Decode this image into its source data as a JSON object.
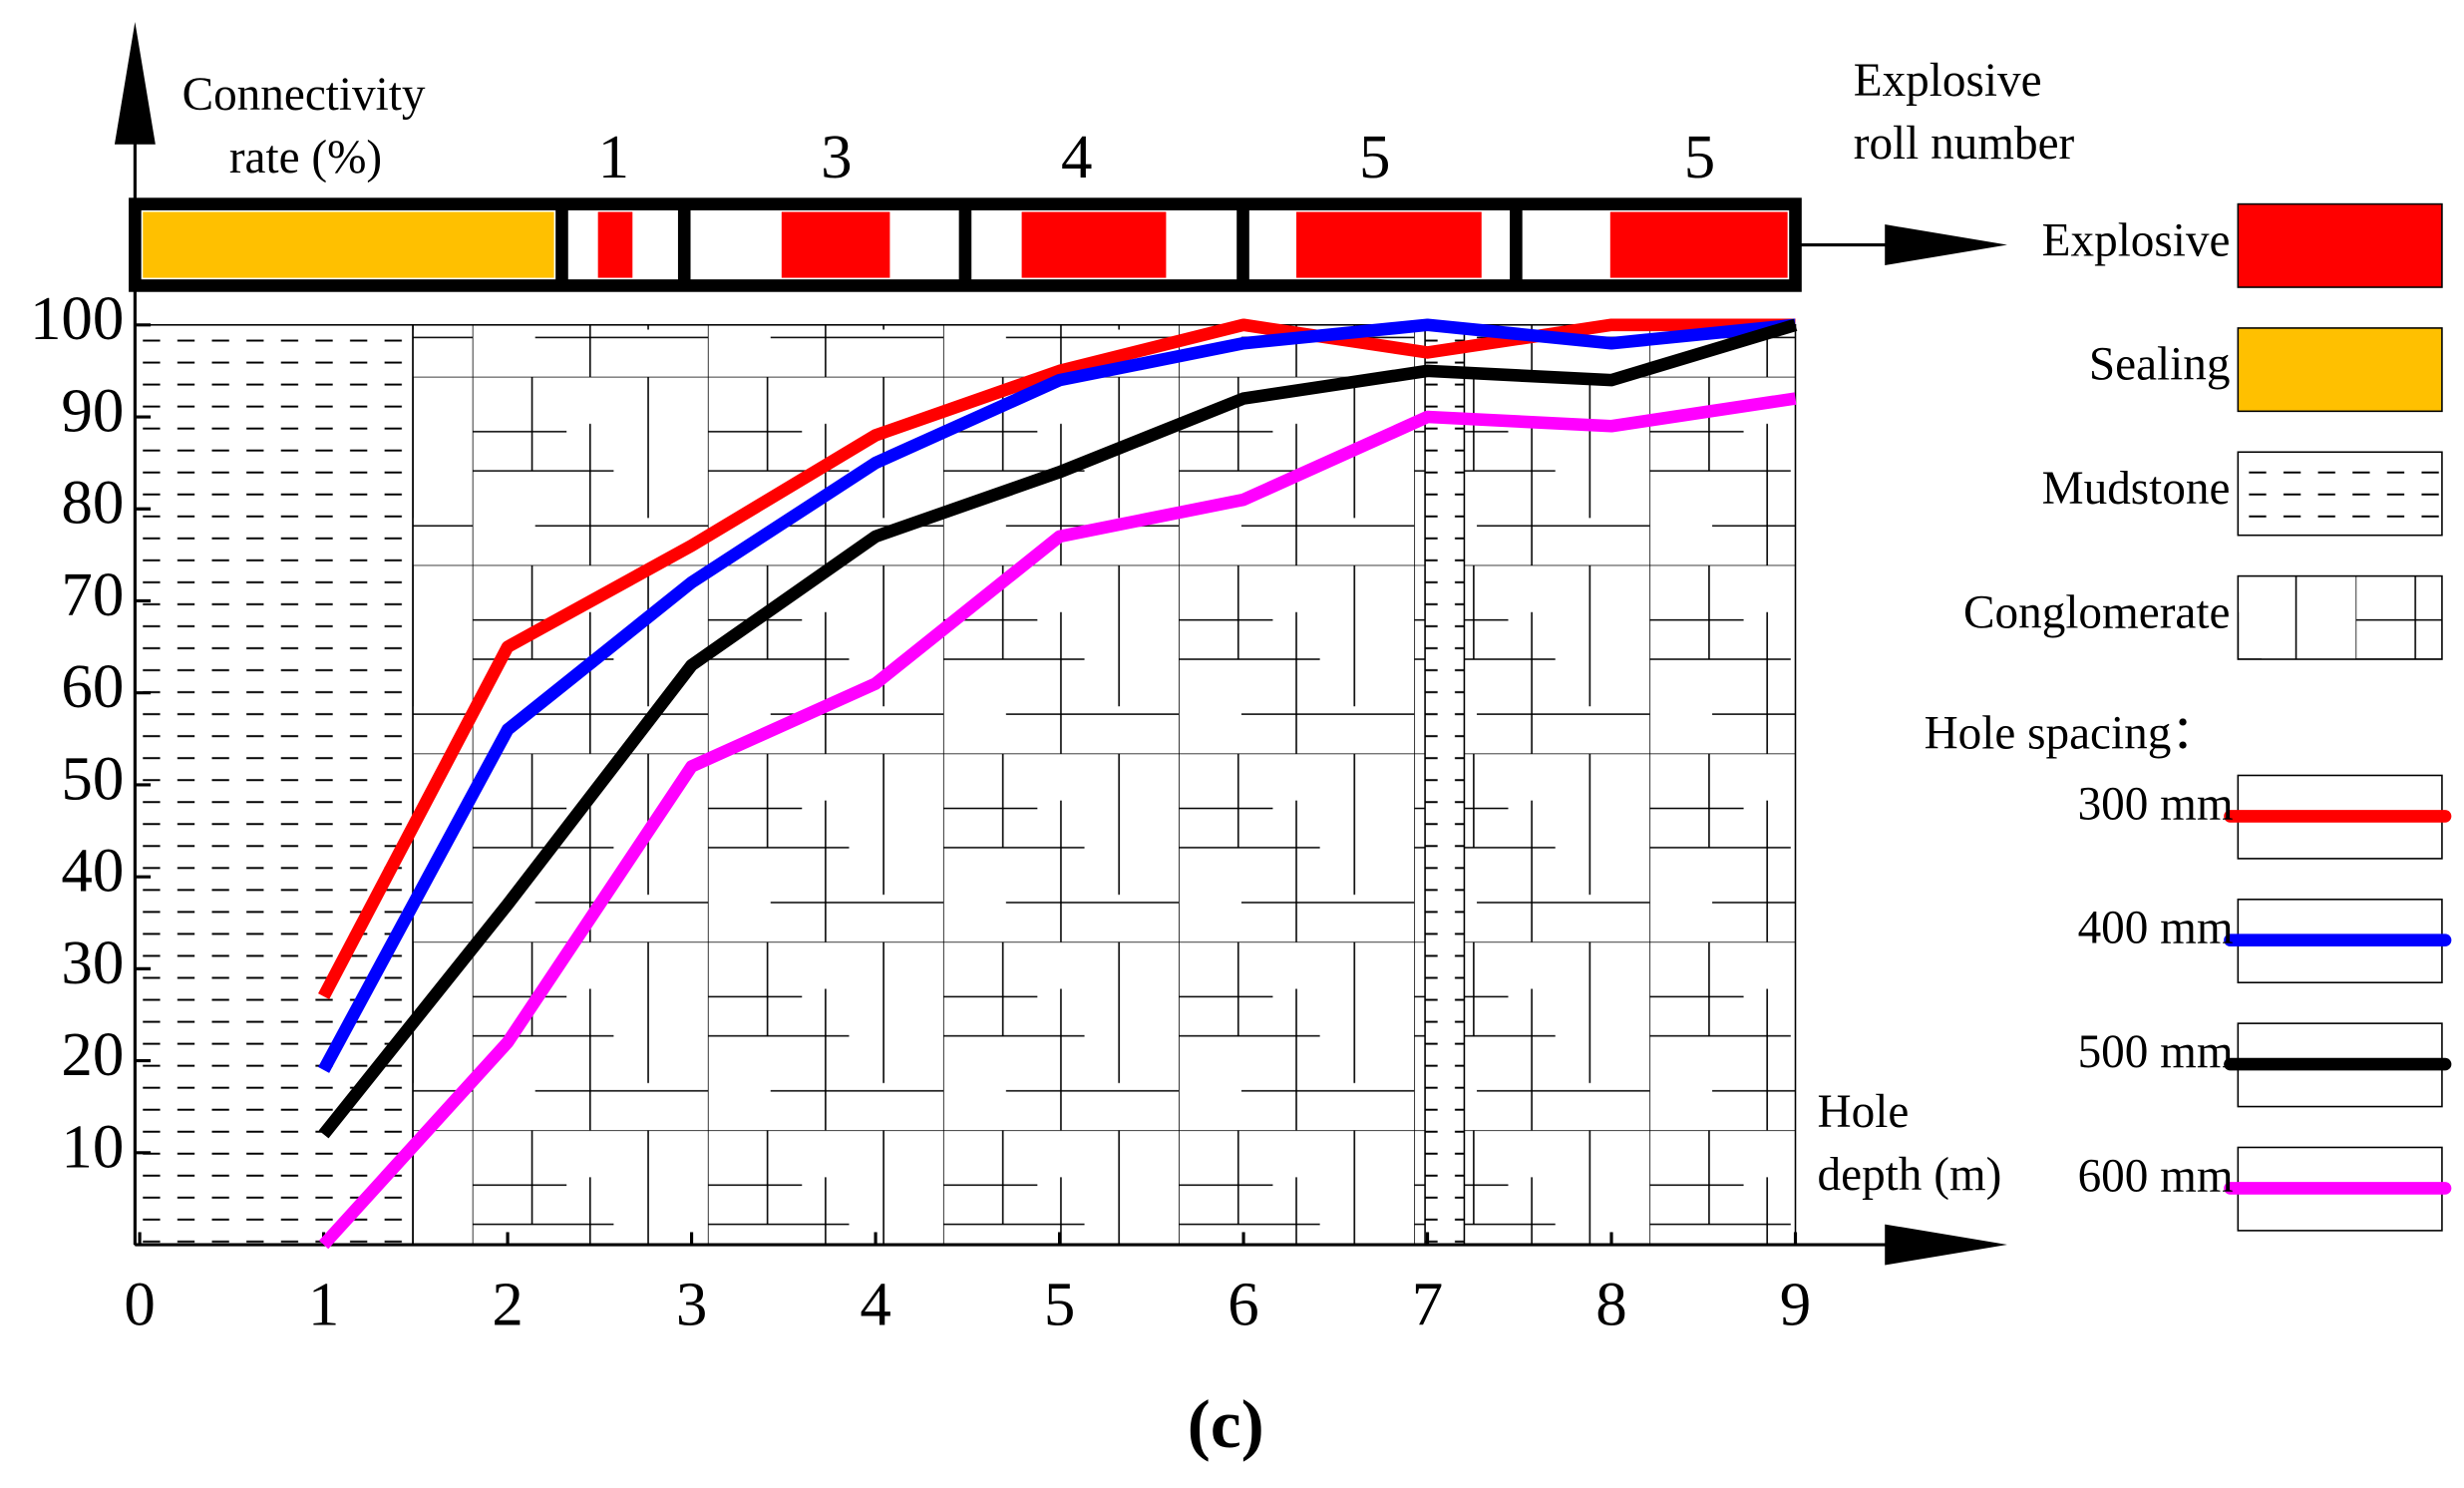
{
  "chart_data": {
    "type": "line",
    "y_label_lines": [
      "Connectivity",
      "rate (%)"
    ],
    "x_label_lines": [
      "Hole",
      "depth (m)"
    ],
    "bar_label_lines": [
      "Explosive",
      "roll number"
    ],
    "roll_numbers": [
      "1",
      "3",
      "4",
      "5",
      "5"
    ],
    "layer_legend": [
      "Explosive",
      "Sealing",
      "Mudstone",
      "Conglomerate"
    ],
    "legend_title": "Hole spacing：",
    "caption": "(c)",
    "x": [
      1,
      2,
      3,
      4,
      5,
      6,
      7,
      8,
      9
    ],
    "xlim": [
      0,
      9
    ],
    "xticks": [
      0,
      1,
      2,
      3,
      4,
      5,
      6,
      7,
      8,
      9
    ],
    "ylim": [
      0,
      100
    ],
    "yticks": [
      10,
      20,
      30,
      40,
      50,
      60,
      70,
      80,
      90,
      100
    ],
    "series": [
      {
        "name": "300 mm",
        "color": "#ff0000",
        "values": [
          27,
          65,
          76,
          88,
          95,
          100,
          97,
          100,
          100
        ]
      },
      {
        "name": "400 mm",
        "color": "#0000ff",
        "values": [
          19,
          56,
          72,
          85,
          94,
          98,
          100,
          98,
          100
        ]
      },
      {
        "name": "500 mm",
        "color": "#000000",
        "values": [
          12,
          37,
          63,
          77,
          84,
          92,
          95,
          94,
          100
        ]
      },
      {
        "name": "600 mm",
        "color": "#ff00ff",
        "values": [
          0,
          22,
          52,
          61,
          77,
          81,
          90,
          89,
          92
        ]
      }
    ]
  }
}
